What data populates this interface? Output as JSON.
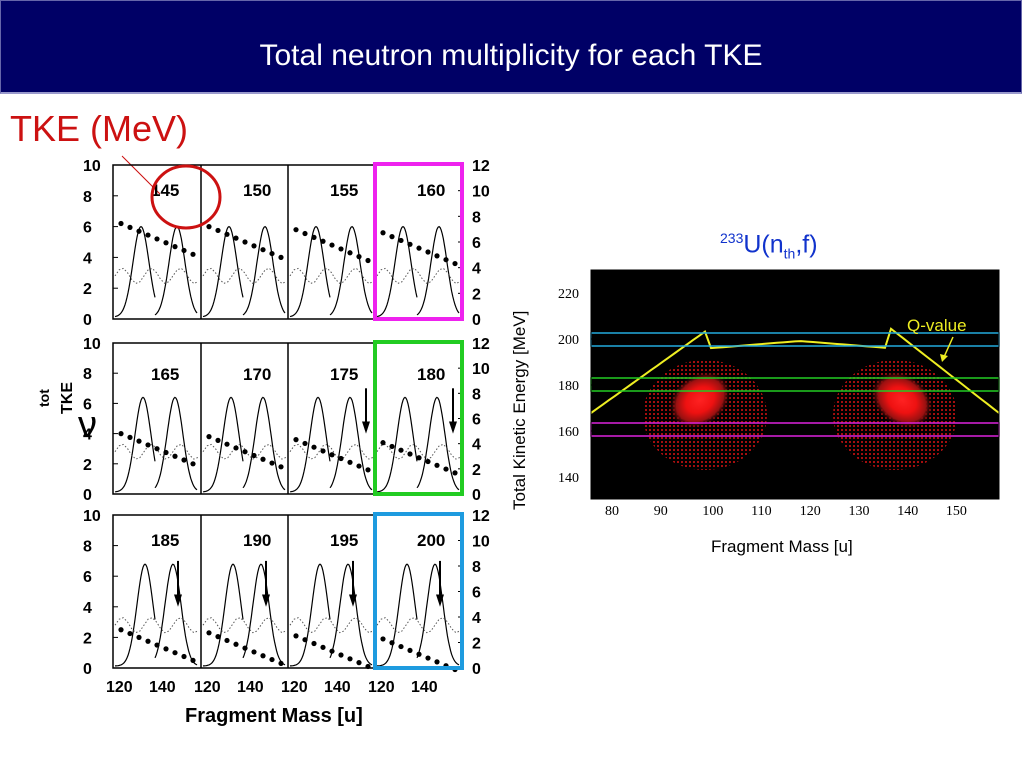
{
  "slide": {
    "title": "Total neutron multiplicity for each TKE",
    "annotation_label": "TKE (MeV)"
  },
  "left_figure": {
    "y_label_symbol": "ν",
    "y_label_sup": "tot",
    "y_label_sub": "TKE",
    "x_label": "Fragment  Mass  [u]",
    "left_ticks": [
      "10",
      "8",
      "6",
      "4",
      "2",
      "0"
    ],
    "right_ticks": [
      "12",
      "10",
      "8",
      "6",
      "4",
      "2",
      "0"
    ],
    "x_ticks": [
      "120",
      "140"
    ],
    "panels": [
      [
        "145",
        "150",
        "155",
        "160"
      ],
      [
        "165",
        "170",
        "175",
        "180"
      ],
      [
        "185",
        "190",
        "195",
        "200"
      ]
    ],
    "highlight_colors": {
      "circle": "#cc1111",
      "magenta": "#ee22ee",
      "green": "#22cc22",
      "blue": "#1e9bdf"
    }
  },
  "right_figure": {
    "title_sup": "233",
    "title_main": "U(n",
    "title_sub": "th",
    "title_end": ",f)",
    "y_label": "Total Kinetic Energy [MeV]",
    "x_label": "Fragment Mass [u]",
    "y_ticks": [
      "220",
      "200",
      "180",
      "160",
      "140"
    ],
    "x_ticks": [
      "80",
      "90",
      "100",
      "110",
      "120",
      "130",
      "140",
      "150"
    ],
    "q_value_label": "Q-value",
    "band_colors": {
      "blue": "#22aadd",
      "green": "#22cc22",
      "magenta": "#dd22dd",
      "q_value": "#eeee22"
    }
  }
}
